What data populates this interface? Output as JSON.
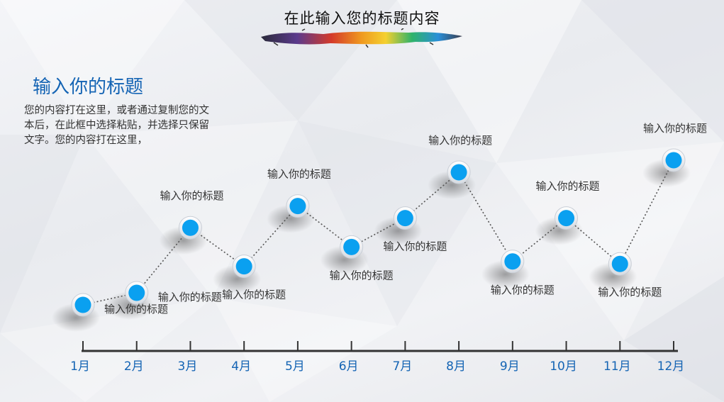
{
  "header": {
    "title": "在此输入您的标题内容"
  },
  "side_panel": {
    "heading": "输入你的标题",
    "body": "您的内容打在这里，或者通过复制您的文本后，在此框中选择粘贴，并选择只保留文字。您的内容打在这里，"
  },
  "colors": {
    "accent": "#1464b4",
    "marker": "#0aa0f0",
    "axis": "#333333"
  },
  "chart_data": {
    "type": "line",
    "categories": [
      "1月",
      "2月",
      "3月",
      "4月",
      "5月",
      "6月",
      "7月",
      "8月",
      "9月",
      "10月",
      "11月",
      "12月"
    ],
    "values": [
      1.0,
      1.5,
      4.2,
      2.6,
      5.1,
      3.4,
      4.6,
      6.5,
      2.8,
      4.6,
      2.7,
      7.0
    ],
    "ylim": [
      0,
      8
    ],
    "grid": false,
    "point_labels": [
      "输入你的标题",
      "输入你的标题",
      "输入你的标题",
      "输入你的标题",
      "输入你的标题",
      "输入你的标题",
      "输入你的标题",
      "输入你的标题",
      "输入你的标题",
      "输入你的标题",
      "输入你的标题",
      "输入你的标题"
    ],
    "label_positions": [
      "right",
      "right",
      "above",
      "below",
      "above",
      "below",
      "below",
      "above",
      "below",
      "above",
      "below",
      "above"
    ]
  }
}
